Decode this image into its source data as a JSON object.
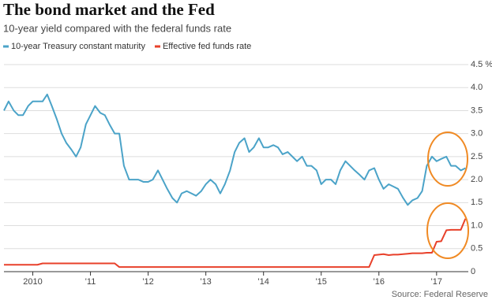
{
  "chart_data": {
    "type": "line",
    "title": "The bond market and the Fed",
    "subtitle": "10-year yield compared with the federal funds rate",
    "source": "Source: Federal Reserve",
    "x": [
      2009.5,
      2009.58,
      2009.67,
      2009.75,
      2009.83,
      2009.92,
      2010.0,
      2010.08,
      2010.17,
      2010.25,
      2010.33,
      2010.42,
      2010.5,
      2010.58,
      2010.67,
      2010.75,
      2010.83,
      2010.92,
      2011.0,
      2011.08,
      2011.17,
      2011.25,
      2011.33,
      2011.42,
      2011.5,
      2011.58,
      2011.67,
      2011.75,
      2011.83,
      2011.92,
      2012.0,
      2012.08,
      2012.17,
      2012.25,
      2012.33,
      2012.42,
      2012.5,
      2012.58,
      2012.67,
      2012.75,
      2012.83,
      2012.92,
      2013.0,
      2013.08,
      2013.17,
      2013.25,
      2013.33,
      2013.42,
      2013.5,
      2013.58,
      2013.67,
      2013.75,
      2013.83,
      2013.92,
      2014.0,
      2014.08,
      2014.17,
      2014.25,
      2014.33,
      2014.42,
      2014.5,
      2014.58,
      2014.67,
      2014.75,
      2014.83,
      2014.92,
      2015.0,
      2015.08,
      2015.17,
      2015.25,
      2015.33,
      2015.42,
      2015.5,
      2015.58,
      2015.67,
      2015.75,
      2015.83,
      2015.92,
      2016.0,
      2016.08,
      2016.17,
      2016.25,
      2016.33,
      2016.42,
      2016.5,
      2016.58,
      2016.67,
      2016.75,
      2016.83,
      2016.92,
      2017.0,
      2017.08,
      2017.17,
      2017.25,
      2017.33,
      2017.42,
      2017.5
    ],
    "series": [
      {
        "name": "10-year Treasury constant maturity",
        "color": "#4ba3c8",
        "values": [
          3.5,
          3.7,
          3.5,
          3.4,
          3.4,
          3.6,
          3.7,
          3.7,
          3.7,
          3.85,
          3.6,
          3.3,
          3.0,
          2.8,
          2.65,
          2.5,
          2.7,
          3.2,
          3.4,
          3.6,
          3.45,
          3.4,
          3.2,
          3.0,
          3.0,
          2.3,
          2.0,
          2.0,
          2.0,
          1.95,
          1.95,
          2.0,
          2.2,
          2.0,
          1.8,
          1.6,
          1.5,
          1.7,
          1.75,
          1.7,
          1.65,
          1.75,
          1.9,
          2.0,
          1.9,
          1.7,
          1.9,
          2.2,
          2.6,
          2.8,
          2.9,
          2.6,
          2.7,
          2.9,
          2.7,
          2.7,
          2.75,
          2.7,
          2.55,
          2.6,
          2.5,
          2.4,
          2.5,
          2.3,
          2.3,
          2.2,
          1.9,
          2.0,
          2.0,
          1.9,
          2.2,
          2.4,
          2.3,
          2.2,
          2.1,
          2.0,
          2.2,
          2.25,
          2.0,
          1.8,
          1.9,
          1.85,
          1.8,
          1.6,
          1.45,
          1.55,
          1.6,
          1.75,
          2.3,
          2.5,
          2.4,
          2.45,
          2.5,
          2.3,
          2.3,
          2.2,
          2.25
        ]
      },
      {
        "name": "Effective fed funds rate",
        "color": "#e8402a",
        "values": [
          0.15,
          0.15,
          0.15,
          0.15,
          0.15,
          0.15,
          0.15,
          0.15,
          0.18,
          0.18,
          0.18,
          0.18,
          0.18,
          0.18,
          0.18,
          0.18,
          0.18,
          0.18,
          0.18,
          0.18,
          0.18,
          0.18,
          0.18,
          0.18,
          0.1,
          0.1,
          0.1,
          0.1,
          0.1,
          0.1,
          0.1,
          0.1,
          0.1,
          0.1,
          0.1,
          0.1,
          0.1,
          0.1,
          0.1,
          0.1,
          0.1,
          0.1,
          0.1,
          0.1,
          0.1,
          0.1,
          0.1,
          0.1,
          0.1,
          0.1,
          0.1,
          0.1,
          0.1,
          0.1,
          0.1,
          0.1,
          0.1,
          0.1,
          0.1,
          0.1,
          0.1,
          0.1,
          0.1,
          0.1,
          0.1,
          0.1,
          0.1,
          0.1,
          0.1,
          0.1,
          0.1,
          0.1,
          0.1,
          0.1,
          0.1,
          0.1,
          0.1,
          0.36,
          0.37,
          0.38,
          0.36,
          0.37,
          0.37,
          0.38,
          0.39,
          0.4,
          0.4,
          0.4,
          0.41,
          0.41,
          0.65,
          0.66,
          0.9,
          0.91,
          0.91,
          0.91,
          1.15
        ]
      }
    ],
    "xlim": [
      2009.5,
      2017.55
    ],
    "xticks": [
      {
        "value": 2010,
        "label": "2010"
      },
      {
        "value": 2011,
        "label": "'11"
      },
      {
        "value": 2012,
        "label": "'12"
      },
      {
        "value": 2013,
        "label": "'13"
      },
      {
        "value": 2014,
        "label": "'14"
      },
      {
        "value": 2015,
        "label": "'15"
      },
      {
        "value": 2016,
        "label": "'16"
      },
      {
        "value": 2017,
        "label": "'17"
      }
    ],
    "ylim": [
      0,
      4.5
    ],
    "yticks": [
      0,
      0.5,
      {
        "value": 1,
        "label": "1.0"
      },
      1.5,
      {
        "value": 2,
        "label": "2.0"
      },
      2.5,
      {
        "value": 3,
        "label": "3.0"
      },
      3.5,
      {
        "value": 4,
        "label": "4.0"
      },
      {
        "value": 4.5,
        "label": "4.5 %"
      }
    ],
    "grid": true
  }
}
